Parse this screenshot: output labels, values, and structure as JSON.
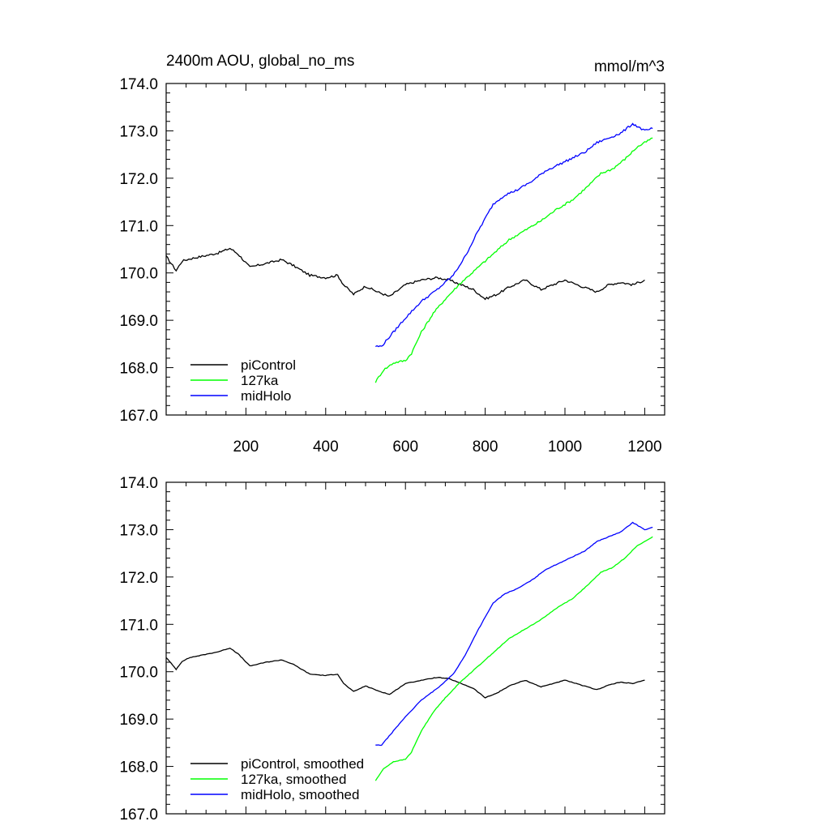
{
  "chart_data": [
    {
      "type": "line",
      "title_left": "2400m AOU, global_no_ms",
      "title_right": "mmol/m^3",
      "xlabel": "",
      "ylabel": "",
      "xlim": [
        0,
        1250
      ],
      "ylim": [
        167.0,
        174.0
      ],
      "xticks": [
        200,
        400,
        600,
        800,
        1000,
        1200
      ],
      "xtick_labels": [
        "200",
        "400",
        "600",
        "800",
        "1000",
        "1200"
      ],
      "yticks": [
        167.0,
        168.0,
        169.0,
        170.0,
        171.0,
        172.0,
        173.0,
        174.0
      ],
      "ytick_labels": [
        "167.0",
        "168.0",
        "169.0",
        "170.0",
        "171.0",
        "172.0",
        "173.0",
        "174.0"
      ],
      "legend_position": "bottom-left",
      "series": [
        {
          "name": "piControl",
          "color": "#000000",
          "x": [
            0,
            25,
            40,
            60,
            90,
            130,
            160,
            180,
            210,
            250,
            290,
            320,
            360,
            400,
            430,
            445,
            470,
            500,
            530,
            560,
            600,
            640,
            680,
            710,
            740,
            770,
            800,
            830,
            860,
            900,
            940,
            970,
            1000,
            1040,
            1080,
            1110,
            1140,
            1170,
            1200
          ],
          "values": [
            170.35,
            170.05,
            170.25,
            170.3,
            170.35,
            170.42,
            170.52,
            170.4,
            170.12,
            170.2,
            170.28,
            170.15,
            169.95,
            169.9,
            169.95,
            169.75,
            169.55,
            169.72,
            169.6,
            169.5,
            169.75,
            169.85,
            169.9,
            169.85,
            169.75,
            169.65,
            169.45,
            169.55,
            169.7,
            169.85,
            169.65,
            169.75,
            169.85,
            169.72,
            169.6,
            169.75,
            169.8,
            169.75,
            169.85
          ]
        },
        {
          "name": "127ka",
          "color": "#00ff00",
          "x": [
            525,
            545,
            570,
            600,
            615,
            640,
            670,
            700,
            740,
            780,
            820,
            860,
            900,
            940,
            980,
            1020,
            1060,
            1090,
            1120,
            1150,
            1180,
            1200,
            1220
          ],
          "values": [
            167.7,
            167.95,
            168.1,
            168.15,
            168.3,
            168.75,
            169.15,
            169.45,
            169.8,
            170.1,
            170.4,
            170.7,
            170.9,
            171.1,
            171.35,
            171.55,
            171.85,
            172.1,
            172.2,
            172.4,
            172.65,
            172.75,
            172.85
          ]
        },
        {
          "name": "midHolo",
          "color": "#0000ff",
          "x": [
            525,
            540,
            570,
            600,
            640,
            680,
            720,
            750,
            780,
            820,
            850,
            880,
            920,
            950,
            1000,
            1050,
            1080,
            1110,
            1140,
            1170,
            1180,
            1200,
            1220
          ],
          "values": [
            168.45,
            168.45,
            168.75,
            169.05,
            169.4,
            169.65,
            169.95,
            170.35,
            170.85,
            171.45,
            171.65,
            171.75,
            171.95,
            172.15,
            172.35,
            172.55,
            172.75,
            172.85,
            172.95,
            173.15,
            173.1,
            173.0,
            173.05
          ]
        }
      ]
    },
    {
      "type": "line",
      "title_left": "",
      "title_right": "",
      "xlabel": "",
      "ylabel": "",
      "xlim": [
        0,
        1250
      ],
      "ylim": [
        167.0,
        174.0
      ],
      "xticks": [
        200,
        400,
        600,
        800,
        1000,
        1200
      ],
      "yticks": [
        167.0,
        168.0,
        169.0,
        170.0,
        171.0,
        172.0,
        173.0,
        174.0
      ],
      "ytick_labels": [
        "167.0",
        "168.0",
        "169.0",
        "170.0",
        "171.0",
        "172.0",
        "173.0",
        "174.0"
      ],
      "legend_position": "bottom-left",
      "series": [
        {
          "name": "piControl, smoothed",
          "color": "#000000",
          "x": [
            0,
            25,
            40,
            60,
            90,
            130,
            160,
            180,
            210,
            250,
            290,
            320,
            360,
            400,
            430,
            445,
            470,
            500,
            530,
            560,
            600,
            640,
            680,
            710,
            740,
            770,
            800,
            830,
            860,
            900,
            940,
            970,
            1000,
            1040,
            1080,
            1110,
            1140,
            1170,
            1200
          ],
          "values": [
            170.3,
            170.05,
            170.22,
            170.3,
            170.35,
            170.42,
            170.5,
            170.38,
            170.12,
            170.2,
            170.25,
            170.15,
            169.95,
            169.92,
            169.95,
            169.75,
            169.58,
            169.7,
            169.6,
            169.52,
            169.75,
            169.82,
            169.88,
            169.85,
            169.75,
            169.65,
            169.45,
            169.55,
            169.7,
            169.82,
            169.68,
            169.75,
            169.82,
            169.72,
            169.62,
            169.72,
            169.78,
            169.75,
            169.82
          ]
        },
        {
          "name": "127ka, smoothed",
          "color": "#00ff00",
          "x": [
            525,
            545,
            570,
            600,
            615,
            640,
            670,
            700,
            740,
            780,
            820,
            860,
            900,
            940,
            980,
            1020,
            1060,
            1090,
            1120,
            1150,
            1180,
            1200,
            1220
          ],
          "values": [
            167.7,
            167.95,
            168.1,
            168.15,
            168.3,
            168.75,
            169.15,
            169.45,
            169.8,
            170.1,
            170.4,
            170.7,
            170.9,
            171.1,
            171.35,
            171.55,
            171.85,
            172.1,
            172.2,
            172.4,
            172.65,
            172.75,
            172.85
          ]
        },
        {
          "name": "midHolo, smoothed",
          "color": "#0000ff",
          "x": [
            525,
            540,
            570,
            600,
            640,
            680,
            720,
            750,
            780,
            820,
            850,
            880,
            920,
            950,
            1000,
            1050,
            1080,
            1110,
            1140,
            1170,
            1180,
            1200,
            1220
          ],
          "values": [
            168.45,
            168.45,
            168.75,
            169.05,
            169.4,
            169.65,
            169.95,
            170.35,
            170.85,
            171.45,
            171.65,
            171.75,
            171.95,
            172.15,
            172.35,
            172.55,
            172.75,
            172.85,
            172.95,
            173.15,
            173.1,
            173.0,
            173.05
          ]
        }
      ]
    }
  ]
}
